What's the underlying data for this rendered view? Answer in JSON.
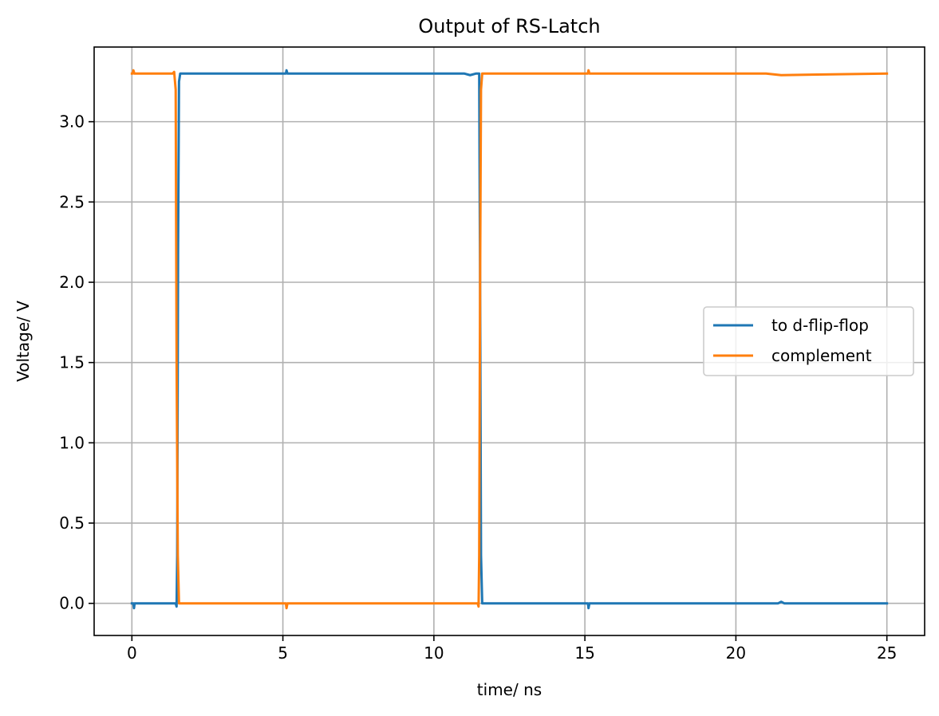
{
  "chart_data": {
    "type": "line",
    "title": "Output of RS-Latch",
    "xlabel": "time/ ns",
    "ylabel": "Voltage/ V",
    "xlim": [
      -1.25,
      26.25
    ],
    "ylim": [
      -0.2,
      3.465
    ],
    "xticks": [
      0,
      5,
      10,
      15,
      20,
      25
    ],
    "xtick_labels": [
      "0",
      "5",
      "10",
      "15",
      "20",
      "25"
    ],
    "yticks": [
      0.0,
      0.5,
      1.0,
      1.5,
      2.0,
      2.5,
      3.0
    ],
    "ytick_labels": [
      "0.0",
      "0.5",
      "1.0",
      "1.5",
      "2.0",
      "2.5",
      "3.0"
    ],
    "grid": true,
    "legend_position": "center-right",
    "series": [
      {
        "name": "to d-flip-flop",
        "color": "#1f77b4",
        "x": [
          0,
          0.05,
          0.07,
          0.09,
          0.12,
          1.45,
          1.48,
          1.5,
          1.53,
          1.56,
          1.6,
          1.65,
          5.1,
          5.12,
          5.15,
          5.2,
          11.0,
          11.2,
          11.4,
          11.5,
          11.53,
          11.56,
          11.6,
          11.65,
          15.1,
          15.12,
          15.15,
          15.2,
          21.4,
          21.5,
          21.6,
          25.0
        ],
        "y": [
          0.0,
          0.0,
          -0.03,
          0.0,
          0.0,
          0.0,
          -0.02,
          0.3,
          2.2,
          3.25,
          3.3,
          3.3,
          3.3,
          3.32,
          3.3,
          3.3,
          3.3,
          3.29,
          3.3,
          3.3,
          2.0,
          0.3,
          0.0,
          0.0,
          0.0,
          -0.03,
          0.0,
          0.0,
          0.0,
          0.01,
          0.0,
          0.0
        ]
      },
      {
        "name": "complement",
        "color": "#ff7f0e",
        "x": [
          0,
          0.03,
          0.05,
          0.08,
          1.0,
          1.35,
          1.4,
          1.45,
          1.48,
          1.52,
          1.56,
          1.6,
          5.1,
          5.12,
          5.15,
          5.2,
          11.45,
          11.48,
          11.5,
          11.53,
          11.56,
          11.6,
          11.65,
          15.1,
          15.12,
          15.15,
          15.2,
          21.0,
          21.5,
          25.0
        ],
        "y": [
          3.3,
          3.3,
          3.32,
          3.3,
          3.3,
          3.3,
          3.31,
          3.2,
          1.5,
          0.3,
          0.0,
          0.0,
          0.0,
          -0.03,
          0.0,
          0.0,
          0.0,
          -0.02,
          0.3,
          2.0,
          3.2,
          3.3,
          3.3,
          3.3,
          3.32,
          3.3,
          3.3,
          3.3,
          3.29,
          3.3
        ]
      }
    ]
  }
}
